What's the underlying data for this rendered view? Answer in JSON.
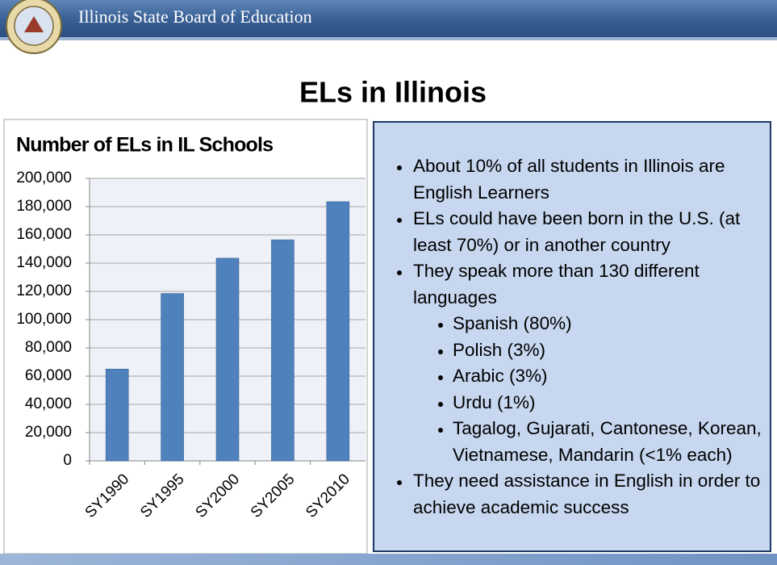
{
  "header": {
    "title": "Illinois State Board of Education"
  },
  "slide_title": "ELs in Illinois",
  "chart_data": {
    "type": "bar",
    "title": "Number of ELs in IL Schools",
    "categories": [
      "SY1990",
      "SY1995",
      "SY2000",
      "SY2005",
      "SY2010"
    ],
    "values": [
      65000,
      118500,
      143500,
      156500,
      183500
    ],
    "color": "#4f81bd",
    "ylim": [
      0,
      200000
    ],
    "yticks": [
      0,
      {
        "value": 20000,
        "label": "20,000"
      },
      {
        "value": 40000,
        "label": "40,000"
      },
      {
        "value": 60000,
        "label": "60,000"
      },
      {
        "value": 80000,
        "label": "80,000"
      },
      {
        "value": 100000,
        "label": "100,000"
      },
      {
        "value": 120000,
        "label": "120,000"
      },
      {
        "value": 140000,
        "label": "140,000"
      },
      {
        "value": 160000,
        "label": "160,000"
      },
      {
        "value": 180000,
        "label": "180,000"
      },
      {
        "value": 200000,
        "label": "200,000"
      }
    ],
    "grid": true
  },
  "bullets": [
    {
      "text": "About 10% of all students in Illinois are English Learners"
    },
    {
      "text": "ELs could have been born in the U.S. (at least 70%) or in another country"
    },
    {
      "text": "They speak more than 130 different languages",
      "sub": [
        "Spanish (80%)",
        "Polish (3%)",
        "Arabic (3%)",
        "Urdu (1%)",
        "Tagalog, Gujarati, Cantonese, Korean, Vietnamese, Mandarin (<1% each)"
      ]
    },
    {
      "text": "They need assistance in English in order to achieve academic success"
    }
  ]
}
